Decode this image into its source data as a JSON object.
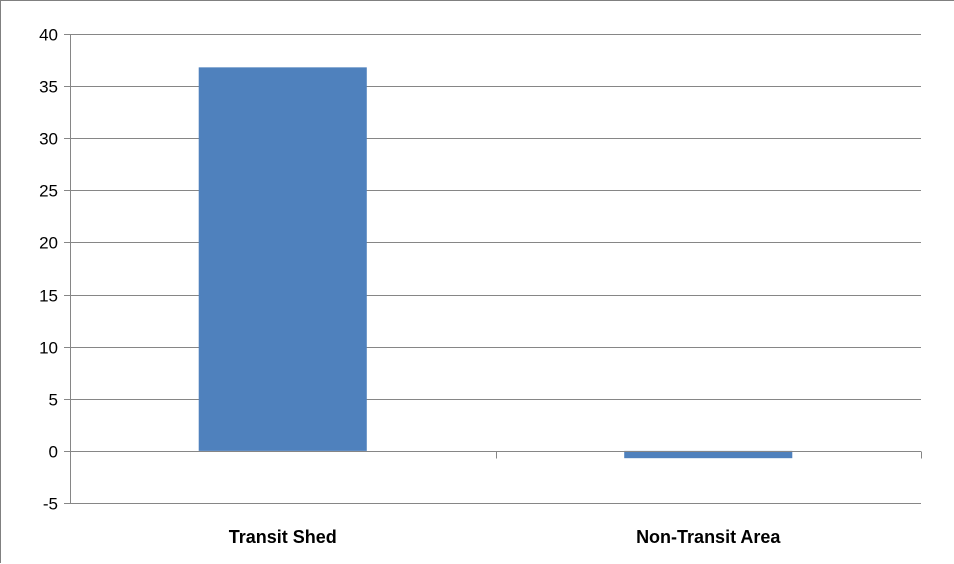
{
  "chart_data": {
    "type": "bar",
    "categories": [
      "Transit Shed",
      "Non-Transit Area"
    ],
    "series": [
      {
        "values": [
          36.8,
          -0.7
        ]
      }
    ],
    "title": "",
    "xlabel": "",
    "ylabel": "",
    "ylim": [
      -5,
      40
    ],
    "yticks": [
      -5,
      0,
      5,
      10,
      15,
      20,
      25,
      30,
      35,
      40
    ],
    "grid": true,
    "legend": "none"
  },
  "colors": {
    "bar": "#4f81bd",
    "grid": "#868686",
    "axis_text": "#000000"
  }
}
